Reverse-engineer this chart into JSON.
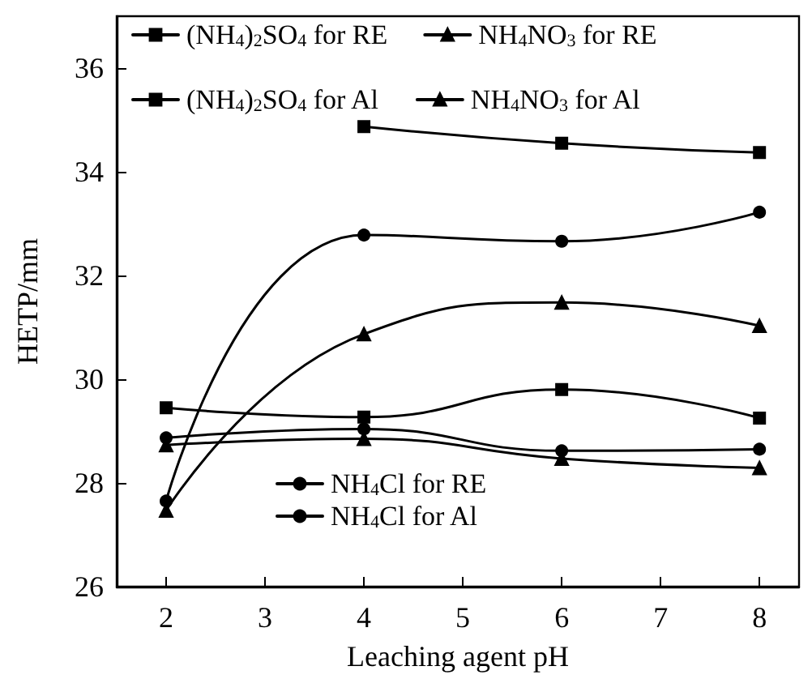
{
  "chart_data": {
    "type": "line",
    "xlabel": "Leaching agent pH",
    "ylabel": "HETP/mm",
    "x": [
      2,
      4,
      6,
      8
    ],
    "series": [
      {
        "name": "(NH$_{4}$)$_{2}$SO$_{4}$ for RE",
        "color": "#000000",
        "marker": "square",
        "values": [
          29.45,
          29.27,
          29.8,
          29.25
        ]
      },
      {
        "name": "NH$_{4}$NO$_{3}$ for RE",
        "color": "#000000",
        "marker": "triangle",
        "values": [
          28.73,
          28.85,
          28.47,
          28.29
        ]
      },
      {
        "name": "(NH$_{4}$)$_{2}$SO$_{4}$ for Al",
        "color": "#000000",
        "marker": "square",
        "values": [
          null,
          34.87,
          34.55,
          34.37
        ]
      },
      {
        "name": "NH$_{4}$NO$_{3}$ for Al",
        "color": "#000000",
        "marker": "triangle",
        "values": [
          27.47,
          30.87,
          31.48,
          31.03
        ]
      },
      {
        "name": "NH$_{4}$Cl for RE",
        "color": "#000000",
        "marker": "circle",
        "values": [
          28.87,
          29.04,
          28.62,
          28.65
        ]
      },
      {
        "name": "NH$_{4}$Cl for Al",
        "color": "#000000",
        "marker": "circle",
        "values": [
          27.65,
          32.78,
          32.66,
          33.22
        ]
      }
    ],
    "xlim": [
      1.5,
      8.4
    ],
    "xticks": [
      2,
      3,
      4,
      5,
      6,
      7,
      8
    ],
    "ylim": [
      26,
      37
    ],
    "yticks": [
      26,
      28,
      30,
      32,
      34,
      36
    ],
    "grid": false,
    "legend": "top left",
    "line_style": "solid"
  }
}
